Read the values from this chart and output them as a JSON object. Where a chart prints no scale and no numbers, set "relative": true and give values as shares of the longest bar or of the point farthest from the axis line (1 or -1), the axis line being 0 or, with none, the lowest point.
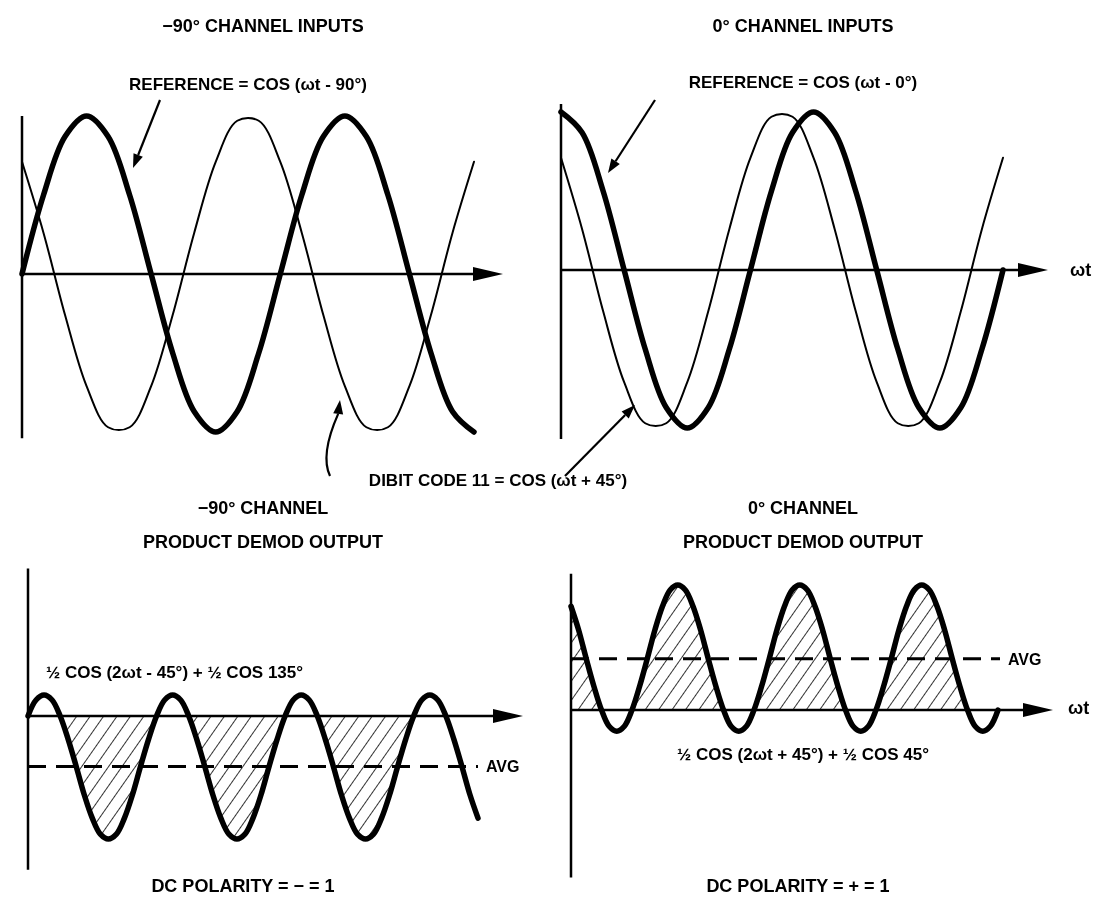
{
  "chart_data": [
    {
      "type": "line",
      "title": "−90° CHANNEL INPUTS",
      "relative": true,
      "categories": [
        null,
        null,
        null,
        null,
        null,
        null,
        null,
        null,
        null,
        null,
        null,
        null,
        null,
        null,
        null,
        null,
        null,
        null,
        null,
        null,
        null,
        null
      ],
      "series": [
        {
          "name": "REFERENCE = COS (ωt - 90°)",
          "color": "#000000",
          "values": [
            0,
            0.5,
            0.87,
            1,
            0.87,
            0.5,
            0,
            -0.5,
            -0.87,
            -1,
            -0.87,
            -0.5,
            0,
            0.5,
            0.87,
            1,
            0.87,
            0.5,
            0,
            -0.5,
            -0.87,
            -1
          ]
        },
        {
          "name": "DIBIT CODE 11 = COS (ωt + 45°)",
          "color": "#000000",
          "values": [
            0.71,
            0.26,
            -0.26,
            -0.71,
            -0.97,
            -0.97,
            -0.71,
            -0.26,
            0.26,
            0.71,
            0.97,
            0.97,
            0.71,
            0.26,
            -0.26,
            -0.71,
            -0.97,
            -0.97,
            -0.71,
            -0.26,
            0.26,
            0.71
          ]
        }
      ]
    },
    {
      "type": "line",
      "title": "0° CHANNEL INPUTS",
      "xlabel": "ωt",
      "relative": true,
      "categories": [
        null,
        null,
        null,
        null,
        null,
        null,
        null,
        null,
        null,
        null,
        null,
        null,
        null,
        null,
        null,
        null,
        null,
        null,
        null,
        null,
        null,
        null
      ],
      "series": [
        {
          "name": "REFERENCE = COS (ωt - 0°)",
          "color": "#000000",
          "values": [
            1,
            0.87,
            0.5,
            0,
            -0.5,
            -0.87,
            -1,
            -0.87,
            -0.5,
            0,
            0.5,
            0.87,
            1,
            0.87,
            0.5,
            0,
            -0.5,
            -0.87,
            -1,
            -0.87,
            -0.5,
            0
          ]
        },
        {
          "color": "#000000",
          "values": [
            0.71,
            0.26,
            -0.26,
            -0.71,
            -0.97,
            -0.97,
            -0.71,
            -0.26,
            0.26,
            0.71,
            0.97,
            0.97,
            0.71,
            0.26,
            -0.26,
            -0.71,
            -0.97,
            -0.97,
            -0.71,
            -0.26,
            0.26,
            0.71
          ]
        }
      ]
    },
    {
      "type": "line",
      "title": "−90° CHANNEL",
      "subtitle": "PRODUCT DEMOD OUTPUT",
      "relative": true,
      "categories": [
        null,
        null,
        null,
        null,
        null,
        null,
        null,
        null,
        null,
        null,
        null,
        null,
        null,
        null,
        null,
        null,
        null,
        null,
        null,
        null,
        null,
        null,
        null,
        null,
        null,
        null,
        null,
        null,
        null,
        null,
        null,
        null,
        null,
        null,
        null,
        null,
        null,
        null,
        null,
        null,
        null,
        null,
        null,
        null,
        null,
        null,
        null,
        null,
        null,
        null,
        null,
        null,
        null,
        null,
        null,
        null,
        null
      ],
      "series": [
        {
          "name": "½ COS (2ωt - 45°) + ½ COS 135°",
          "color": "#000000",
          "values": [
            0,
            0.13,
            0.17,
            0.13,
            0,
            -0.19,
            -0.41,
            -0.64,
            -0.83,
            -0.96,
            -1,
            -0.96,
            -0.83,
            -0.64,
            -0.41,
            -0.19,
            0,
            0.13,
            0.17,
            0.13,
            0,
            -0.19,
            -0.41,
            -0.64,
            -0.83,
            -0.96,
            -1,
            -0.96,
            -0.83,
            -0.64,
            -0.41,
            -0.19,
            0,
            0.13,
            0.17,
            0.13,
            0,
            -0.19,
            -0.41,
            -0.64,
            -0.83,
            -0.96,
            -1,
            -0.96,
            -0.83,
            -0.64,
            -0.41,
            -0.19,
            0,
            0.13,
            0.17,
            0.13,
            0,
            -0.19,
            -0.41,
            -0.64,
            -0.83
          ]
        },
        {
          "type": "area",
          "color": "#000000",
          "values": [
            0,
            0,
            0,
            0,
            0,
            -0.19,
            -0.41,
            -0.64,
            -0.83,
            -0.96,
            -1,
            -0.96,
            -0.83,
            -0.64,
            -0.41,
            -0.19,
            0,
            0,
            0,
            0,
            0,
            -0.19,
            -0.41,
            -0.64,
            -0.83,
            -0.96,
            -1,
            -0.96,
            -0.83,
            -0.64,
            -0.41,
            -0.19,
            0,
            0,
            0,
            0,
            0,
            -0.19,
            -0.41,
            -0.64,
            -0.83,
            -0.96,
            -1,
            -0.96,
            -0.83,
            -0.64,
            -0.41,
            -0.19,
            0,
            null,
            null,
            null,
            null,
            null,
            null,
            null,
            null
          ]
        }
      ],
      "ref_lines": [
        {
          "axis": "y",
          "value": -0.41,
          "label": "AVG",
          "line_style": "dashed"
        }
      ],
      "annotations": [
        "DC POLARITY = − = 1"
      ]
    },
    {
      "type": "line",
      "title": "0° CHANNEL",
      "subtitle": "PRODUCT DEMOD OUTPUT",
      "xlabel": "ωt",
      "relative": true,
      "categories": [
        null,
        null,
        null,
        null,
        null,
        null,
        null,
        null,
        null,
        null,
        null,
        null,
        null,
        null,
        null,
        null,
        null,
        null,
        null,
        null,
        null,
        null,
        null,
        null,
        null,
        null,
        null,
        null,
        null,
        null,
        null,
        null,
        null,
        null,
        null,
        null,
        null,
        null,
        null,
        null,
        null,
        null,
        null,
        null,
        null,
        null,
        null,
        null,
        null,
        null,
        null,
        null,
        null,
        null,
        null,
        null,
        null
      ],
      "series": [
        {
          "name": "½ COS (2ωt + 45°) + ½ COS 45°",
          "color": "#000000",
          "values": [
            0.83,
            0.64,
            0.41,
            0.19,
            0,
            -0.13,
            -0.17,
            -0.13,
            0,
            0.19,
            0.41,
            0.64,
            0.83,
            0.96,
            1,
            0.96,
            0.83,
            0.64,
            0.41,
            0.19,
            0,
            -0.13,
            -0.17,
            -0.13,
            0,
            0.19,
            0.41,
            0.64,
            0.83,
            0.96,
            1,
            0.96,
            0.83,
            0.64,
            0.41,
            0.19,
            0,
            -0.13,
            -0.17,
            -0.13,
            0,
            0.19,
            0.41,
            0.64,
            0.83,
            0.96,
            1,
            0.96,
            0.83,
            0.64,
            0.41,
            0.19,
            0,
            -0.13,
            -0.17,
            -0.13,
            0
          ]
        },
        {
          "type": "area",
          "color": "#000000",
          "values": [
            0.83,
            0.64,
            0.41,
            0.19,
            0,
            null,
            null,
            null,
            0,
            0.19,
            0.41,
            0.64,
            0.83,
            0.96,
            1,
            0.96,
            0.83,
            0.64,
            0.41,
            0.19,
            0,
            null,
            null,
            null,
            0,
            0.19,
            0.41,
            0.64,
            0.83,
            0.96,
            1,
            0.96,
            0.83,
            0.64,
            0.41,
            0.19,
            0,
            null,
            null,
            null,
            0,
            0.19,
            0.41,
            0.64,
            0.83,
            0.96,
            1,
            0.96,
            0.83,
            0.64,
            0.41,
            0.19,
            0,
            null,
            null,
            null,
            null
          ]
        }
      ],
      "ref_lines": [
        {
          "axis": "y",
          "value": 0.41,
          "label": "AVG",
          "line_style": "dashed"
        }
      ],
      "annotations": [
        "DC POLARITY = + = 1"
      ]
    }
  ]
}
